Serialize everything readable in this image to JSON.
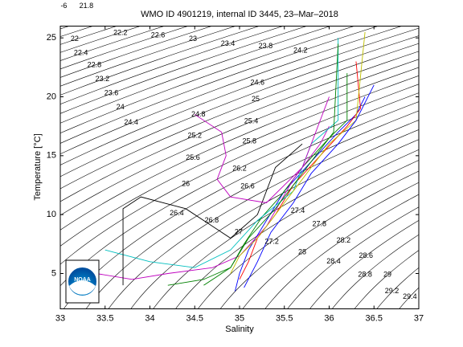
{
  "chart_data": {
    "type": "ts-diagram",
    "title": "WMO ID 4901219, internal ID 3445, 23–Mar–2018",
    "xlabel": "Salinity",
    "ylabel": "Temperature [°C]",
    "xlim": [
      33,
      37
    ],
    "xticks": [
      33,
      33.5,
      34,
      34.5,
      35,
      35.5,
      36,
      36.5,
      37
    ],
    "ylim": [
      2,
      26
    ],
    "yticks": [
      5,
      10,
      15,
      20,
      25
    ],
    "contour_range": [
      20.6,
      29.8
    ],
    "contour_step": 0.2,
    "contour_color": "#000000",
    "contour_labels": [
      {
        "label": "-6",
        "x": 33.04,
        "y": 27.7
      },
      {
        "label": "21.8",
        "x": 33.29,
        "y": 27.7
      },
      {
        "label": "22",
        "x": 33.16,
        "y": 24.9
      },
      {
        "label": "22.2",
        "x": 33.67,
        "y": 25.4
      },
      {
        "label": "22.6",
        "x": 34.09,
        "y": 25.2
      },
      {
        "label": "23",
        "x": 34.48,
        "y": 24.9
      },
      {
        "label": "23.4",
        "x": 34.87,
        "y": 24.5
      },
      {
        "label": "23.8",
        "x": 35.29,
        "y": 24.3
      },
      {
        "label": "24.2",
        "x": 35.68,
        "y": 23.9
      },
      {
        "label": "22.4",
        "x": 33.23,
        "y": 23.7
      },
      {
        "label": "22.8",
        "x": 33.38,
        "y": 22.7
      },
      {
        "label": "23.2",
        "x": 33.47,
        "y": 21.5
      },
      {
        "label": "23.6",
        "x": 33.57,
        "y": 20.3
      },
      {
        "label": "24",
        "x": 33.67,
        "y": 19.1
      },
      {
        "label": "24.4",
        "x": 33.79,
        "y": 17.8
      },
      {
        "label": "24.6",
        "x": 35.2,
        "y": 21.2
      },
      {
        "label": "25",
        "x": 35.18,
        "y": 19.8
      },
      {
        "label": "24.8",
        "x": 34.54,
        "y": 18.5
      },
      {
        "label": "25.4",
        "x": 35.13,
        "y": 17.9
      },
      {
        "label": "25.2",
        "x": 34.5,
        "y": 16.7
      },
      {
        "label": "25.8",
        "x": 35.11,
        "y": 16.2
      },
      {
        "label": "25.6",
        "x": 34.48,
        "y": 14.8
      },
      {
        "label": "26.2",
        "x": 35.0,
        "y": 13.9
      },
      {
        "label": "26",
        "x": 34.4,
        "y": 12.6
      },
      {
        "label": "26.6",
        "x": 35.09,
        "y": 12.4
      },
      {
        "label": "26.4",
        "x": 34.3,
        "y": 10.1
      },
      {
        "label": "26.8",
        "x": 34.69,
        "y": 9.5
      },
      {
        "label": "27",
        "x": 34.99,
        "y": 8.5
      },
      {
        "label": "27.4",
        "x": 35.65,
        "y": 10.3
      },
      {
        "label": "27.8",
        "x": 35.89,
        "y": 9.2
      },
      {
        "label": "27.2",
        "x": 35.36,
        "y": 7.7
      },
      {
        "label": "28.2",
        "x": 36.16,
        "y": 7.8
      },
      {
        "label": "28",
        "x": 35.7,
        "y": 6.8
      },
      {
        "label": "28.6",
        "x": 36.41,
        "y": 6.5
      },
      {
        "label": "28.4",
        "x": 36.05,
        "y": 6.0
      },
      {
        "label": "28.8",
        "x": 36.4,
        "y": 4.9
      },
      {
        "label": "29",
        "x": 36.65,
        "y": 4.9
      },
      {
        "label": "29.2",
        "x": 36.7,
        "y": 3.5
      },
      {
        "label": "29.4",
        "x": 36.9,
        "y": 3.0
      }
    ],
    "series": [
      {
        "color": "#0000ff",
        "x": [
          34.95,
          35.0,
          35.1,
          35.3,
          35.5,
          35.8,
          36.1,
          36.3,
          36.4
        ],
        "values": [
          3.5,
          5,
          7,
          9.5,
          12,
          14.5,
          17,
          18.5,
          20
        ]
      },
      {
        "color": "#008000",
        "x": [
          34.6,
          34.9,
          35.05,
          35.25,
          35.45,
          35.7,
          36.0,
          36.2,
          36.2
        ],
        "values": [
          4,
          5.5,
          7.5,
          9.8,
          11.5,
          14,
          16.5,
          18,
          22
        ]
      },
      {
        "color": "#ff0000",
        "x": [
          35.0,
          35.1,
          35.2,
          35.4,
          35.6,
          35.9,
          36.2,
          36.35,
          36.3
        ],
        "values": [
          4.5,
          6,
          8,
          10,
          12.5,
          15,
          17.5,
          19,
          23
        ]
      },
      {
        "color": "#bf00bf",
        "x": [
          33.4,
          33.8,
          34.2,
          34.7,
          35.0,
          35.3,
          35.6,
          35.9,
          36.0
        ],
        "values": [
          5,
          4.5,
          5,
          5.5,
          6.5,
          9,
          13,
          16,
          17.5
        ]
      },
      {
        "color": "#00bfbf",
        "x": [
          33.5,
          34.0,
          34.5,
          34.9,
          35.2,
          35.6,
          35.8,
          36.1,
          36.1
        ],
        "values": [
          7,
          6,
          5.5,
          7,
          9.5,
          12,
          16,
          18,
          25
        ]
      },
      {
        "color": "#000000",
        "x": [
          33.7,
          33.7,
          33.9,
          34.4,
          34.9,
          35.2,
          35.4,
          35.7
        ],
        "values": [
          4,
          10.5,
          11.5,
          10.5,
          8,
          10,
          14,
          16
        ]
      },
      {
        "color": "#bf00bf",
        "x": [
          34.5,
          34.8,
          34.85,
          34.75,
          34.9,
          35.3,
          35.7,
          36.0
        ],
        "values": [
          18.5,
          17,
          15,
          13,
          11.5,
          11,
          14,
          20
        ]
      },
      {
        "color": "#bfbf00",
        "x": [
          34.9,
          35.0,
          35.2,
          35.4,
          35.7,
          36.0,
          36.3,
          36.4
        ],
        "values": [
          5,
          6.5,
          8,
          10,
          13,
          16,
          18,
          25.5
        ]
      },
      {
        "color": "#0000ff",
        "x": [
          35.05,
          35.2,
          35.35,
          35.6,
          35.8,
          36.1,
          36.3,
          36.5
        ],
        "values": [
          3.8,
          6,
          8.5,
          11,
          13.5,
          16,
          18,
          21
        ]
      },
      {
        "color": "#008000",
        "x": [
          34.2,
          34.6,
          34.9,
          35.1,
          35.4,
          35.8,
          36.05,
          36.1
        ],
        "values": [
          4,
          4.5,
          5.5,
          8,
          10.5,
          14.5,
          17,
          24.5
        ]
      }
    ],
    "logo_text": "NOAA"
  }
}
